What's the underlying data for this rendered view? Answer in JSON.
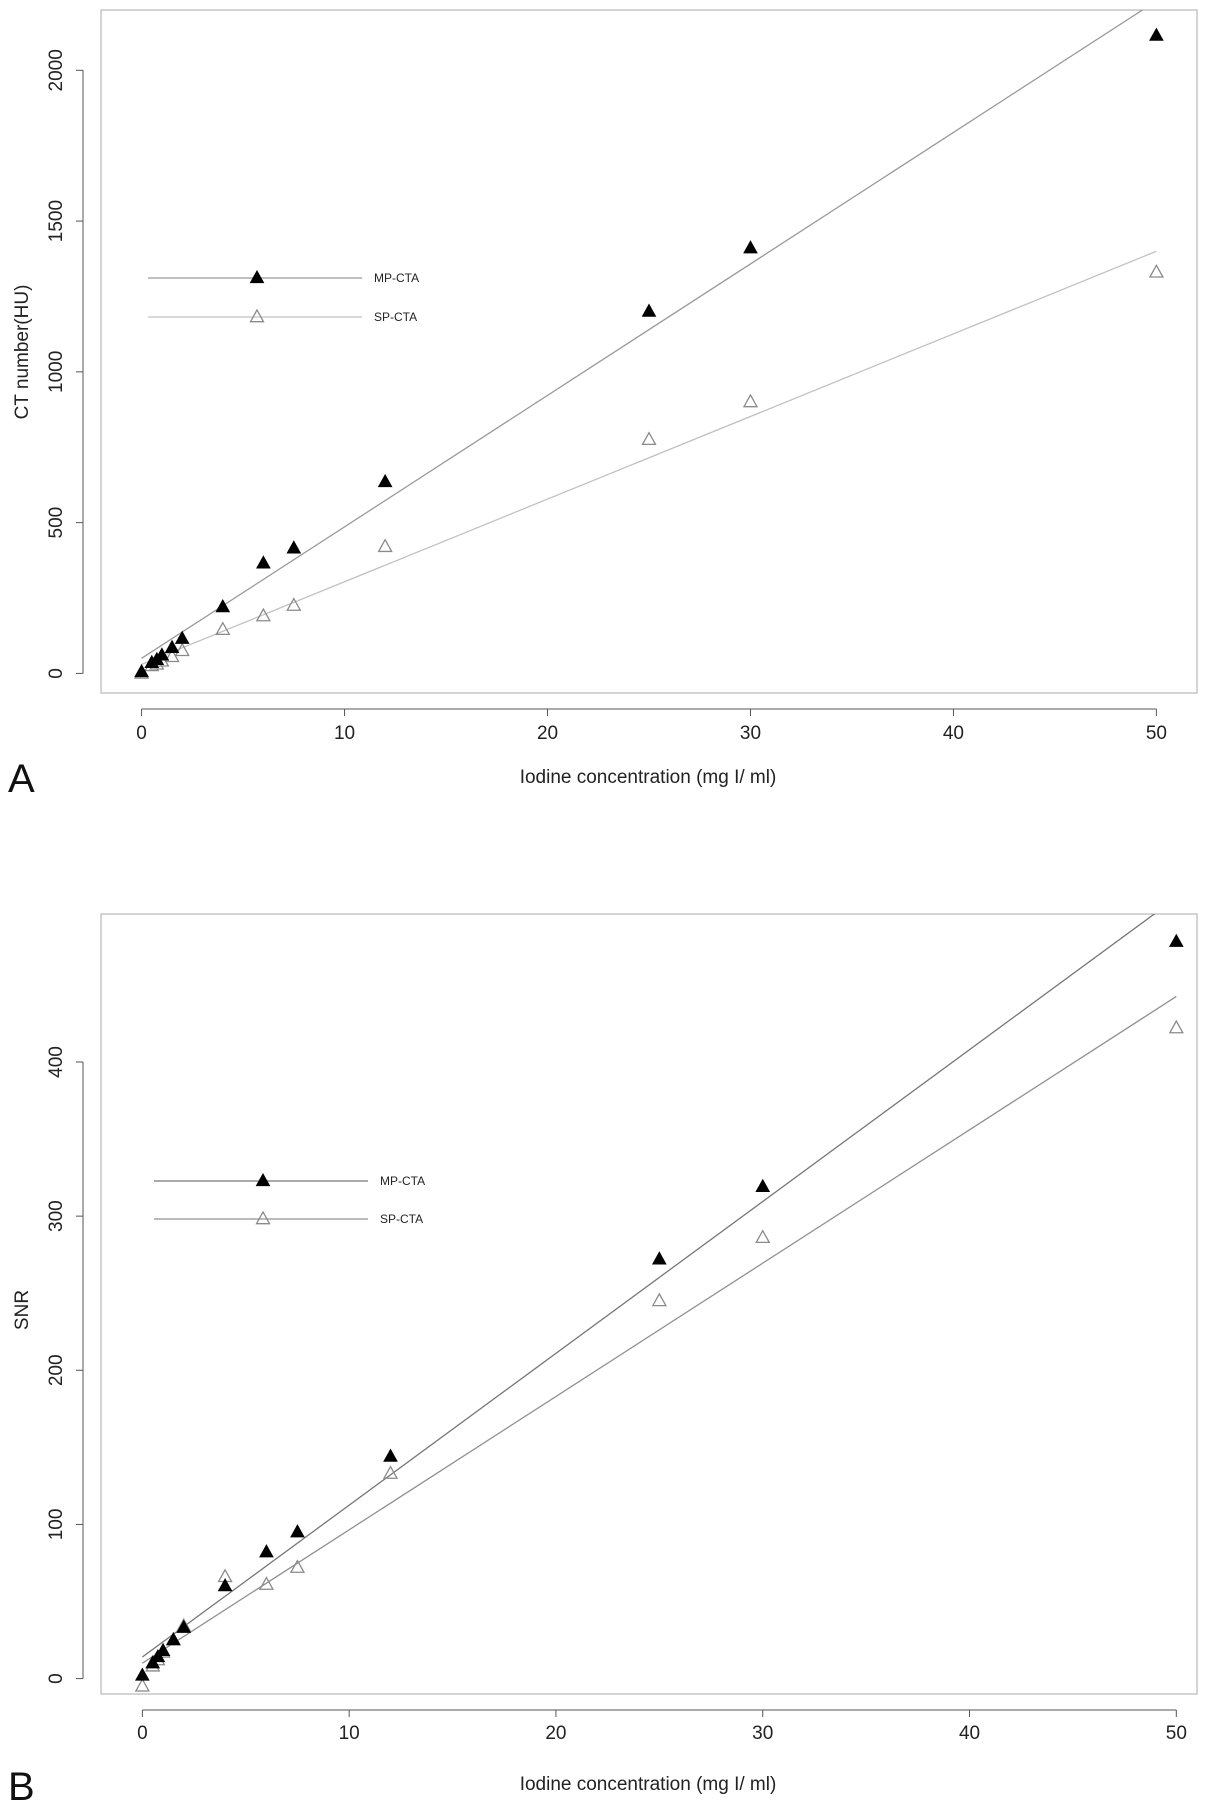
{
  "chart_data": [
    {
      "type": "scatter",
      "panel_label": "A",
      "title": "",
      "xlabel": "Iodine concentration (mg I/ ml)",
      "ylabel": "CT number(HU)",
      "xlim": [
        -2,
        52
      ],
      "ylim": [
        -65,
        2200
      ],
      "x_ticks": [
        0,
        10,
        20,
        30,
        40,
        50
      ],
      "y_ticks": [
        0,
        500,
        1000,
        1500,
        2000
      ],
      "grid": false,
      "legend_position": "top-left",
      "series": [
        {
          "name": "MP-CTA",
          "marker": "filled-triangle",
          "color": "#000000",
          "line_color": "#9a9a9a",
          "x": [
            0,
            0.5,
            0.75,
            1,
            1.5,
            2,
            4,
            6,
            7.5,
            12,
            25,
            30,
            50
          ],
          "y": [
            5,
            35,
            45,
            60,
            85,
            115,
            220,
            365,
            415,
            635,
            1200,
            1410,
            2115
          ],
          "fit": {
            "intercept": 50,
            "slope": 43.6
          }
        },
        {
          "name": "SP-CTA",
          "marker": "open-triangle",
          "color": "#8a8a8a",
          "line_color": "#c2c2c2",
          "x": [
            0,
            0.5,
            0.75,
            1,
            1.5,
            2,
            4,
            6,
            7.5,
            12,
            25,
            30,
            50
          ],
          "y": [
            0,
            25,
            30,
            40,
            55,
            75,
            145,
            190,
            225,
            420,
            775,
            900,
            1330
          ],
          "fit": {
            "intercept": 30,
            "slope": 27.4
          }
        }
      ]
    },
    {
      "type": "scatter",
      "panel_label": "B",
      "title": "",
      "xlabel": "Iodine concentration (mg I/ ml)",
      "ylabel": "SNR",
      "xlim": [
        -2,
        51
      ],
      "ylim": [
        -10,
        496
      ],
      "x_ticks": [
        0,
        10,
        20,
        30,
        40,
        50
      ],
      "y_ticks": [
        0,
        100,
        200,
        300,
        400
      ],
      "grid": false,
      "legend_position": "top-left",
      "series": [
        {
          "name": "MP-CTA",
          "marker": "filled-triangle",
          "color": "#000000",
          "line_color": "#777777",
          "x": [
            0,
            0.5,
            0.75,
            1,
            1.5,
            2,
            4,
            6,
            7.5,
            12,
            25,
            30,
            50
          ],
          "y": [
            2,
            10,
            14,
            18,
            25,
            33,
            60,
            82,
            95,
            144,
            272,
            319,
            478
          ],
          "fit": {
            "intercept": 14,
            "slope": 9.85
          }
        },
        {
          "name": "SP-CTA",
          "marker": "open-triangle",
          "color": "#8a8a8a",
          "line_color": "#909090",
          "x": [
            0,
            0.5,
            0.75,
            1,
            1.5,
            2,
            4,
            6,
            7.5,
            12,
            25,
            30,
            50
          ],
          "y": [
            -5,
            8,
            12,
            17,
            25,
            34,
            66,
            61,
            72,
            133,
            245,
            286,
            422
          ],
          "fit": {
            "intercept": 10,
            "slope": 8.65
          }
        }
      ]
    }
  ]
}
